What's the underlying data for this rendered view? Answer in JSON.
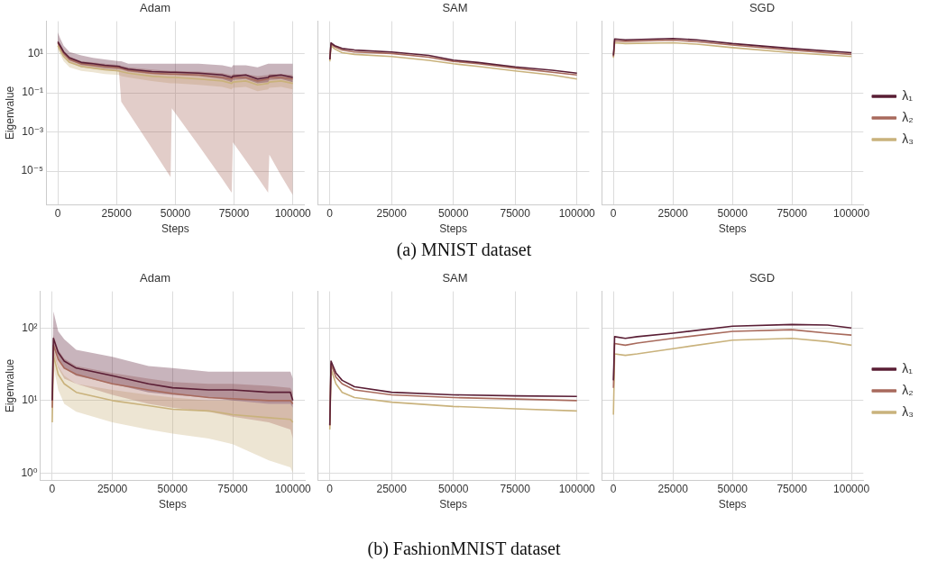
{
  "chart_data": [
    {
      "type": "line",
      "title": "Adam",
      "xlabel": "Steps",
      "ylabel": "Eigenvalue",
      "log": "y",
      "grid": true,
      "marker": "none",
      "line_style": "solid",
      "legend": false,
      "annotations": [
        "(a) MNIST dataset"
      ],
      "xlim": [
        -5000,
        105000
      ],
      "xticks": [
        0,
        25000,
        50000,
        75000,
        100000
      ],
      "ylim": [
        2e-07,
        440
      ],
      "yticks": [
        {
          "value": 10,
          "label": "10¹"
        },
        {
          "value": 0.1,
          "label": "10⁻¹"
        },
        {
          "value": 0.001,
          "label": "10⁻³"
        },
        {
          "value": 1e-05,
          "label": "10⁻⁵"
        }
      ],
      "x": [
        0,
        1000,
        2500,
        5000,
        10000,
        15000,
        20000,
        26000,
        27000,
        30000,
        40000,
        48000,
        48500,
        50000,
        60000,
        70000,
        74000,
        74500,
        80000,
        85000,
        89500,
        90000,
        95000,
        100000
      ],
      "series": [
        {
          "color": "#5a1e35",
          "values": [
            40,
            25,
            12,
            6,
            3.5,
            3,
            2.5,
            2.2,
            2,
            1.6,
            1.2,
            1.1,
            1.1,
            1.1,
            1,
            0.8,
            0.6,
            0.7,
            0.8,
            0.5,
            0.6,
            0.7,
            0.8,
            0.6
          ],
          "lower": [
            30,
            18,
            9,
            4.5,
            2.6,
            2.2,
            1.8,
            1.6,
            1.5,
            1.2,
            0.9,
            0.8,
            0.8,
            0.8,
            0.7,
            0.5,
            0.35,
            0.45,
            0.5,
            0.3,
            0.35,
            0.45,
            0.5,
            0.35
          ],
          "upper": [
            120,
            60,
            25,
            12,
            8,
            6,
            5,
            4,
            4,
            3,
            3,
            3,
            3,
            3,
            3,
            2.5,
            2,
            2.5,
            2.5,
            2,
            3,
            3,
            3,
            3
          ]
        },
        {
          "color": "#a86a5c",
          "values": [
            35,
            22,
            10,
            5,
            3,
            2.5,
            2.2,
            1.9,
            1.8,
            1.4,
            1,
            0.9,
            0.9,
            0.9,
            0.8,
            0.6,
            0.5,
            0.6,
            0.6,
            0.4,
            0.5,
            0.6,
            0.6,
            0.5
          ],
          "lower": [
            25,
            15,
            7,
            3.5,
            2,
            1.7,
            1.5,
            1.2,
            0.035,
            0.01,
            0.00015,
            5e-06,
            0.016,
            0.009,
            0.0002,
            4e-06,
            8e-07,
            0.0003,
            3.5e-05,
            5e-06,
            8e-07,
            7e-05,
            6e-06,
            6e-07
          ],
          "upper": [
            50,
            30,
            14,
            7,
            4,
            3.5,
            3,
            2.6,
            2.4,
            2,
            1.5,
            1.3,
            1.3,
            1.3,
            1.2,
            1,
            0.8,
            0.9,
            0.9,
            0.7,
            0.8,
            0.9,
            0.9,
            0.8
          ]
        },
        {
          "color": "#c9b27c",
          "values": [
            25,
            15,
            7,
            3.5,
            2.2,
            1.8,
            1.5,
            1.3,
            1.2,
            1,
            0.7,
            0.6,
            0.6,
            0.6,
            0.5,
            0.4,
            0.3,
            0.35,
            0.4,
            0.25,
            0.3,
            0.35,
            0.4,
            0.3
          ],
          "lower": [
            15,
            9,
            4,
            2,
            1.3,
            1.1,
            0.9,
            0.8,
            0.7,
            0.6,
            0.4,
            0.3,
            0.3,
            0.3,
            0.25,
            0.2,
            0.15,
            0.18,
            0.2,
            0.12,
            0.15,
            0.18,
            0.2,
            0.15
          ],
          "upper": [
            38,
            22,
            10,
            5,
            3.3,
            2.7,
            2.2,
            2,
            1.8,
            1.5,
            1,
            0.9,
            0.9,
            0.9,
            0.8,
            0.6,
            0.45,
            0.5,
            0.6,
            0.4,
            0.45,
            0.5,
            0.6,
            0.45
          ]
        }
      ]
    },
    {
      "type": "line",
      "title": "SAM",
      "xlabel": "Steps",
      "log": "y",
      "grid": true,
      "marker": "none",
      "line_style": "solid",
      "legend": false,
      "tick_labels": "x",
      "xlim": [
        -5000,
        105000
      ],
      "xticks": [
        0,
        25000,
        50000,
        75000,
        100000
      ],
      "ylim": [
        2e-07,
        440
      ],
      "yticks": [
        10,
        0.1,
        0.001,
        1e-05
      ],
      "x": [
        0,
        500,
        2000,
        5000,
        10000,
        25000,
        40000,
        50000,
        60000,
        75000,
        90000,
        100000
      ],
      "series": [
        {
          "color": "#5a1e35",
          "values": [
            5,
            35,
            25,
            18,
            15,
            12,
            8,
            4.6,
            3.5,
            2.1,
            1.4,
            1
          ]
        },
        {
          "color": "#a86a5c",
          "values": [
            5,
            30,
            22,
            15,
            12,
            10,
            6.5,
            4,
            3,
            1.8,
            1.1,
            0.8
          ]
        },
        {
          "color": "#c9b27c",
          "values": [
            4,
            25,
            17,
            11,
            9,
            7,
            4.5,
            3,
            2.2,
            1.3,
            0.8,
            0.5
          ]
        }
      ]
    },
    {
      "type": "line",
      "title": "SGD",
      "xlabel": "Steps",
      "log": "y",
      "grid": true,
      "marker": "none",
      "line_style": "solid",
      "legend": "right",
      "tick_labels": "x",
      "xlim": [
        -5000,
        105000
      ],
      "xticks": [
        0,
        25000,
        50000,
        75000,
        100000
      ],
      "ylim": [
        2e-07,
        440
      ],
      "yticks": [
        10,
        0.1,
        0.001,
        1e-05
      ],
      "x": [
        0,
        500,
        5000,
        25000,
        35000,
        50000,
        75000,
        100000
      ],
      "series": [
        {
          "name": "λ₁",
          "color": "#5a1e35",
          "values": [
            8,
            55,
            50,
            58,
            50,
            32,
            18,
            11
          ]
        },
        {
          "name": "λ₂",
          "color": "#a86a5c",
          "values": [
            7,
            45,
            42,
            48,
            40,
            27,
            15,
            9
          ]
        },
        {
          "name": "λ₃",
          "color": "#c9b27c",
          "values": [
            6,
            35,
            32,
            35,
            30,
            20,
            11,
            7
          ]
        }
      ]
    },
    {
      "type": "line",
      "title": "Adam",
      "xlabel": "Steps",
      "ylabel": "Eigenvalue",
      "log": "y",
      "grid": true,
      "marker": "none",
      "line_style": "solid",
      "legend": false,
      "annotations": [
        "(b) FashionMNIST dataset"
      ],
      "xlim": [
        -5000,
        105000
      ],
      "xticks": [
        0,
        25000,
        50000,
        75000,
        100000
      ],
      "ylim": [
        0.8,
        320
      ],
      "yticks": [
        {
          "value": 1,
          "label": "10⁰"
        },
        {
          "value": 10,
          "label": "10¹"
        },
        {
          "value": 100,
          "label": "10²"
        }
      ],
      "x": [
        0,
        500,
        2500,
        5000,
        10000,
        25000,
        40000,
        50000,
        65000,
        75000,
        90000,
        99000,
        100000
      ],
      "series": [
        {
          "color": "#5a1e35",
          "values": [
            10,
            72,
            46,
            35,
            28,
            22,
            17,
            15,
            14,
            14,
            13,
            13,
            10
          ],
          "lower": [
            8,
            55,
            38,
            28,
            22,
            17,
            13,
            12,
            11,
            10,
            9,
            9,
            8
          ],
          "upper": [
            20,
            170,
            90,
            70,
            50,
            40,
            30,
            28,
            25,
            25,
            25,
            25,
            20
          ]
        },
        {
          "color": "#a86a5c",
          "values": [
            8,
            58,
            37,
            28,
            23,
            17,
            14,
            12.5,
            11,
            10.6,
            10,
            10,
            9
          ],
          "lower": [
            6,
            45,
            28,
            20,
            17,
            12,
            9,
            8,
            7,
            6,
            5,
            4,
            3
          ],
          "upper": [
            10,
            80,
            50,
            38,
            30,
            24,
            20,
            18,
            17,
            17,
            16,
            15,
            13
          ]
        },
        {
          "color": "#c9b27c",
          "values": [
            5,
            42,
            23,
            17,
            13,
            10,
            8.5,
            7.6,
            7.2,
            6.4,
            5.8,
            5.5,
            5
          ],
          "lower": [
            4,
            30,
            14,
            9,
            7,
            5,
            4,
            3.5,
            3,
            2.5,
            1.5,
            1.2,
            1
          ],
          "upper": [
            6,
            55,
            30,
            22,
            17,
            14,
            12,
            11,
            10,
            10,
            9,
            9,
            8
          ]
        }
      ]
    },
    {
      "type": "line",
      "title": "SAM",
      "xlabel": "Steps",
      "log": "y",
      "grid": true,
      "marker": "none",
      "line_style": "solid",
      "legend": false,
      "tick_labels": "x",
      "xlim": [
        -5000,
        105000
      ],
      "xticks": [
        0,
        25000,
        50000,
        75000,
        100000
      ],
      "ylim": [
        0.8,
        320
      ],
      "yticks": [
        1,
        10,
        100
      ],
      "x": [
        0,
        500,
        2500,
        5000,
        10000,
        25000,
        50000,
        75000,
        100000
      ],
      "series": [
        {
          "color": "#5a1e35",
          "values": [
            4.6,
            35,
            24,
            19,
            15.5,
            13,
            12,
            11.6,
            11.4
          ]
        },
        {
          "color": "#a86a5c",
          "values": [
            4.5,
            32,
            21,
            17,
            14,
            12,
            11,
            10.5,
            10
          ]
        },
        {
          "color": "#c9b27c",
          "values": [
            4,
            27,
            17,
            13,
            11,
            9.5,
            8.3,
            7.7,
            7.2
          ]
        }
      ]
    },
    {
      "type": "line",
      "title": "SGD",
      "xlabel": "Steps",
      "log": "y",
      "grid": true,
      "marker": "none",
      "line_style": "solid",
      "legend": "right",
      "tick_labels": "x",
      "xlim": [
        -5000,
        105000
      ],
      "xticks": [
        0,
        25000,
        50000,
        75000,
        100000
      ],
      "ylim": [
        0.8,
        320
      ],
      "yticks": [
        1,
        10,
        100
      ],
      "x": [
        0,
        500,
        5000,
        10000,
        25000,
        50000,
        75000,
        90000,
        100000
      ],
      "series": [
        {
          "name": "λ₁",
          "color": "#5a1e35",
          "values": [
            19,
            76,
            72,
            76,
            85,
            106,
            112,
            110,
            100
          ]
        },
        {
          "name": "λ₂",
          "color": "#a86a5c",
          "values": [
            15,
            61,
            58,
            62,
            72,
            90,
            95,
            85,
            80
          ]
        },
        {
          "name": "λ₃",
          "color": "#c9b27c",
          "values": [
            6.4,
            44,
            42,
            44,
            52,
            68,
            72,
            65,
            58
          ]
        }
      ]
    }
  ]
}
